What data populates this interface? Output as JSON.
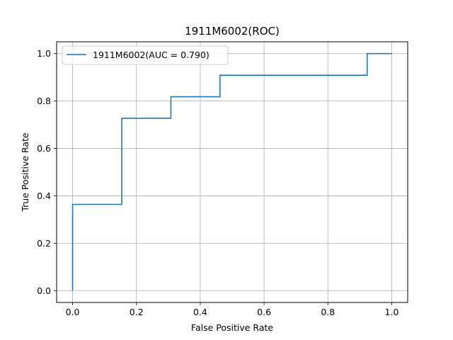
{
  "chart_data": {
    "type": "line",
    "title": "1911M6002(ROC)",
    "xlabel": "False Positive Rate",
    "ylabel": "True Positive Rate",
    "xlim": [
      -0.05,
      1.05
    ],
    "ylim": [
      -0.05,
      1.05
    ],
    "xticks": [
      0.0,
      0.2,
      0.4,
      0.6,
      0.8,
      1.0
    ],
    "yticks": [
      0.0,
      0.2,
      0.4,
      0.6,
      0.8,
      1.0
    ],
    "xtick_labels": [
      "0.0",
      "0.2",
      "0.4",
      "0.6",
      "0.8",
      "1.0"
    ],
    "ytick_labels": [
      "0.0",
      "0.2",
      "0.4",
      "0.6",
      "0.8",
      "1.0"
    ],
    "grid": true,
    "legend_position": "top-left",
    "series": [
      {
        "name": "1911M6002(AUC = 0.790)",
        "color": "#1f77b4",
        "x": [
          0.0,
          0.0,
          0.154,
          0.154,
          0.308,
          0.308,
          0.462,
          0.462,
          0.923,
          0.923,
          1.0
        ],
        "y": [
          0.0,
          0.364,
          0.364,
          0.727,
          0.727,
          0.818,
          0.818,
          0.909,
          0.909,
          1.0,
          1.0
        ]
      }
    ]
  }
}
